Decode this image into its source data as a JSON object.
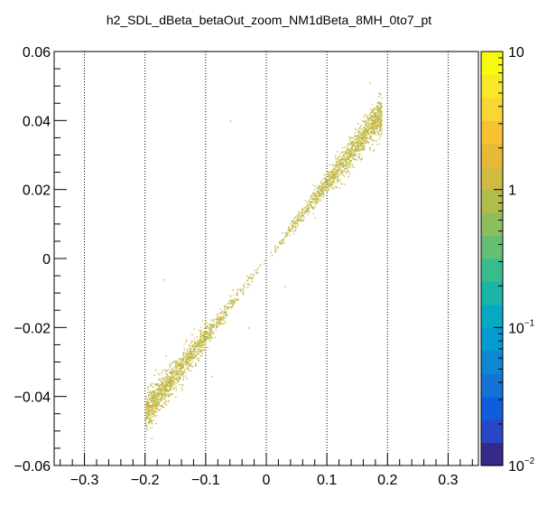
{
  "chart_data": {
    "type": "heatmap",
    "title": "h2_SDL_dBeta_betaOut_zoom_NM1dBeta_8MH_0to7_pt",
    "xlabel": "",
    "ylabel": "",
    "xlim": [
      -0.35,
      0.35
    ],
    "ylim": [
      -0.06,
      0.06
    ],
    "x_ticks": [
      {
        "value": -0.3,
        "label": "−0.3"
      },
      {
        "value": -0.2,
        "label": "−0.2"
      },
      {
        "value": -0.1,
        "label": "−0.1"
      },
      {
        "value": 0,
        "label": "0"
      },
      {
        "value": 0.1,
        "label": "0.1"
      },
      {
        "value": 0.2,
        "label": "0.2"
      },
      {
        "value": 0.3,
        "label": "0.3"
      }
    ],
    "y_ticks": [
      {
        "value": -0.06,
        "label": "−0.06"
      },
      {
        "value": -0.04,
        "label": "−0.04"
      },
      {
        "value": -0.02,
        "label": "−0.02"
      },
      {
        "value": 0,
        "label": "0"
      },
      {
        "value": 0.02,
        "label": "0.02"
      },
      {
        "value": 0.04,
        "label": "0.04"
      },
      {
        "value": 0.06,
        "label": "0.06"
      }
    ],
    "grid_x": true,
    "grid_y": false,
    "trend": {
      "slope": 0.222,
      "x_range": [
        -0.2,
        0.19
      ]
    },
    "z_scale": "log",
    "zlim": [
      0.01,
      10
    ],
    "colorbar_labels": [
      {
        "value": 10,
        "label": "10"
      },
      {
        "value": 1,
        "label": "1"
      },
      {
        "value": 0.1,
        "label": "10",
        "exponent": "−1"
      },
      {
        "value": 0.01,
        "label": "10",
        "exponent": "−2"
      }
    ],
    "colors": {
      "point_main": "#c8b43c",
      "point_alt": "#d4c24a",
      "point_light": "#a9b84e",
      "axis": "#000000",
      "grid": "#000000",
      "colorbar": [
        "#352a87",
        "#2846c8",
        "#0f5cdd",
        "#1373d4",
        "#0d87d2",
        "#069ad0",
        "#07a9c2",
        "#1cb4a9",
        "#38bc8e",
        "#64be73",
        "#8ebe5c",
        "#b1bc4d",
        "#cfbb41",
        "#e6b936",
        "#f6c232",
        "#fad632",
        "#f9e827",
        "#f9fb0e"
      ]
    }
  }
}
